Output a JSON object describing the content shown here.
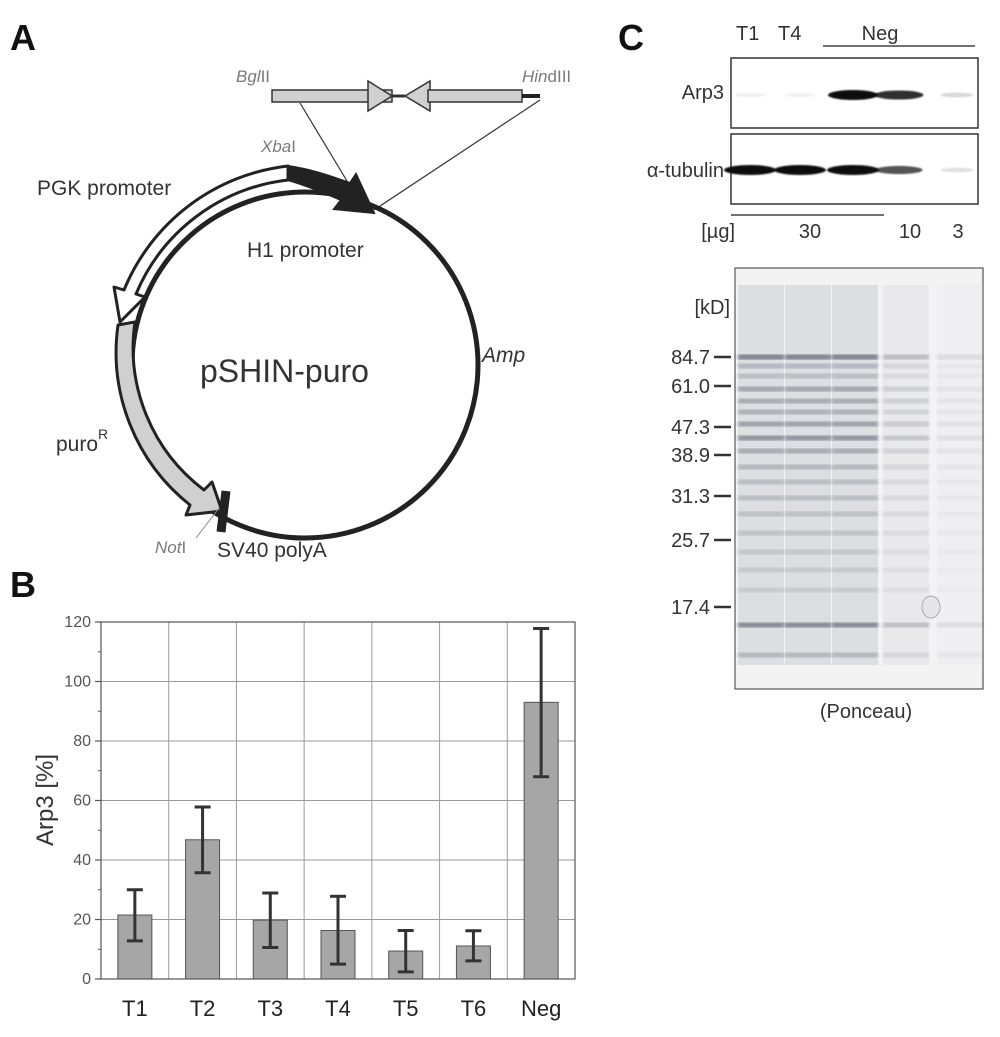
{
  "panels": {
    "a": "A",
    "b": "B",
    "c": "C"
  },
  "plasmid": {
    "name": "pSHIN-puro",
    "pgk_promoter": "PGK promoter",
    "h1_promoter": "H1 promoter",
    "amp": "Amp",
    "puro_base": "puro",
    "puro_sup": "R",
    "sv40": "SV40 polyA",
    "bglii_italic": "Bgl",
    "bglii_rest": "II",
    "hindiii_italic": "Hin",
    "hindiii_rest": "dIII",
    "xbai_italic": "Xba",
    "xbai_rest": "I",
    "noti_italic": "Not",
    "noti_rest": "I"
  },
  "chart_data": {
    "type": "bar",
    "categories": [
      "T1",
      "T2",
      "T3",
      "T4",
      "T5",
      "T6",
      "Neg"
    ],
    "values": [
      21.5,
      46.8,
      19.8,
      16.3,
      9.4,
      11.1,
      93.0
    ],
    "error_low": [
      12.8,
      35.7,
      10.6,
      5.0,
      2.4,
      6.1,
      68.0
    ],
    "error_high": [
      30.0,
      57.8,
      28.9,
      27.8,
      16.3,
      16.2,
      117.8
    ],
    "ylabel": "Arp3 [%]",
    "xlabel": "",
    "ylim": [
      0,
      120
    ],
    "yticks": [
      "0",
      "20",
      "40",
      "60",
      "80",
      "100",
      "120"
    ],
    "grid": true,
    "bar_color": "#a6a6a6"
  },
  "blot": {
    "lane_labels": [
      "T1",
      "T4"
    ],
    "neg_label": "Neg",
    "arp3_label": "Arp3",
    "tubulin_label": "α-tubulin",
    "ug_label": "[µg]",
    "amounts": [
      "30",
      "10",
      "3"
    ],
    "arp3_intensity": [
      0.06,
      0.05,
      1.0,
      0.85,
      0.15
    ],
    "tubulin_intensity": [
      1.0,
      1.0,
      1.0,
      0.7,
      0.12
    ],
    "kd_label": "[kD]",
    "markers": [
      "84.7",
      "61.0",
      "47.3",
      "38.9",
      "31.3",
      "25.7",
      "17.4"
    ],
    "ponceau_caption": "(Ponceau)"
  }
}
